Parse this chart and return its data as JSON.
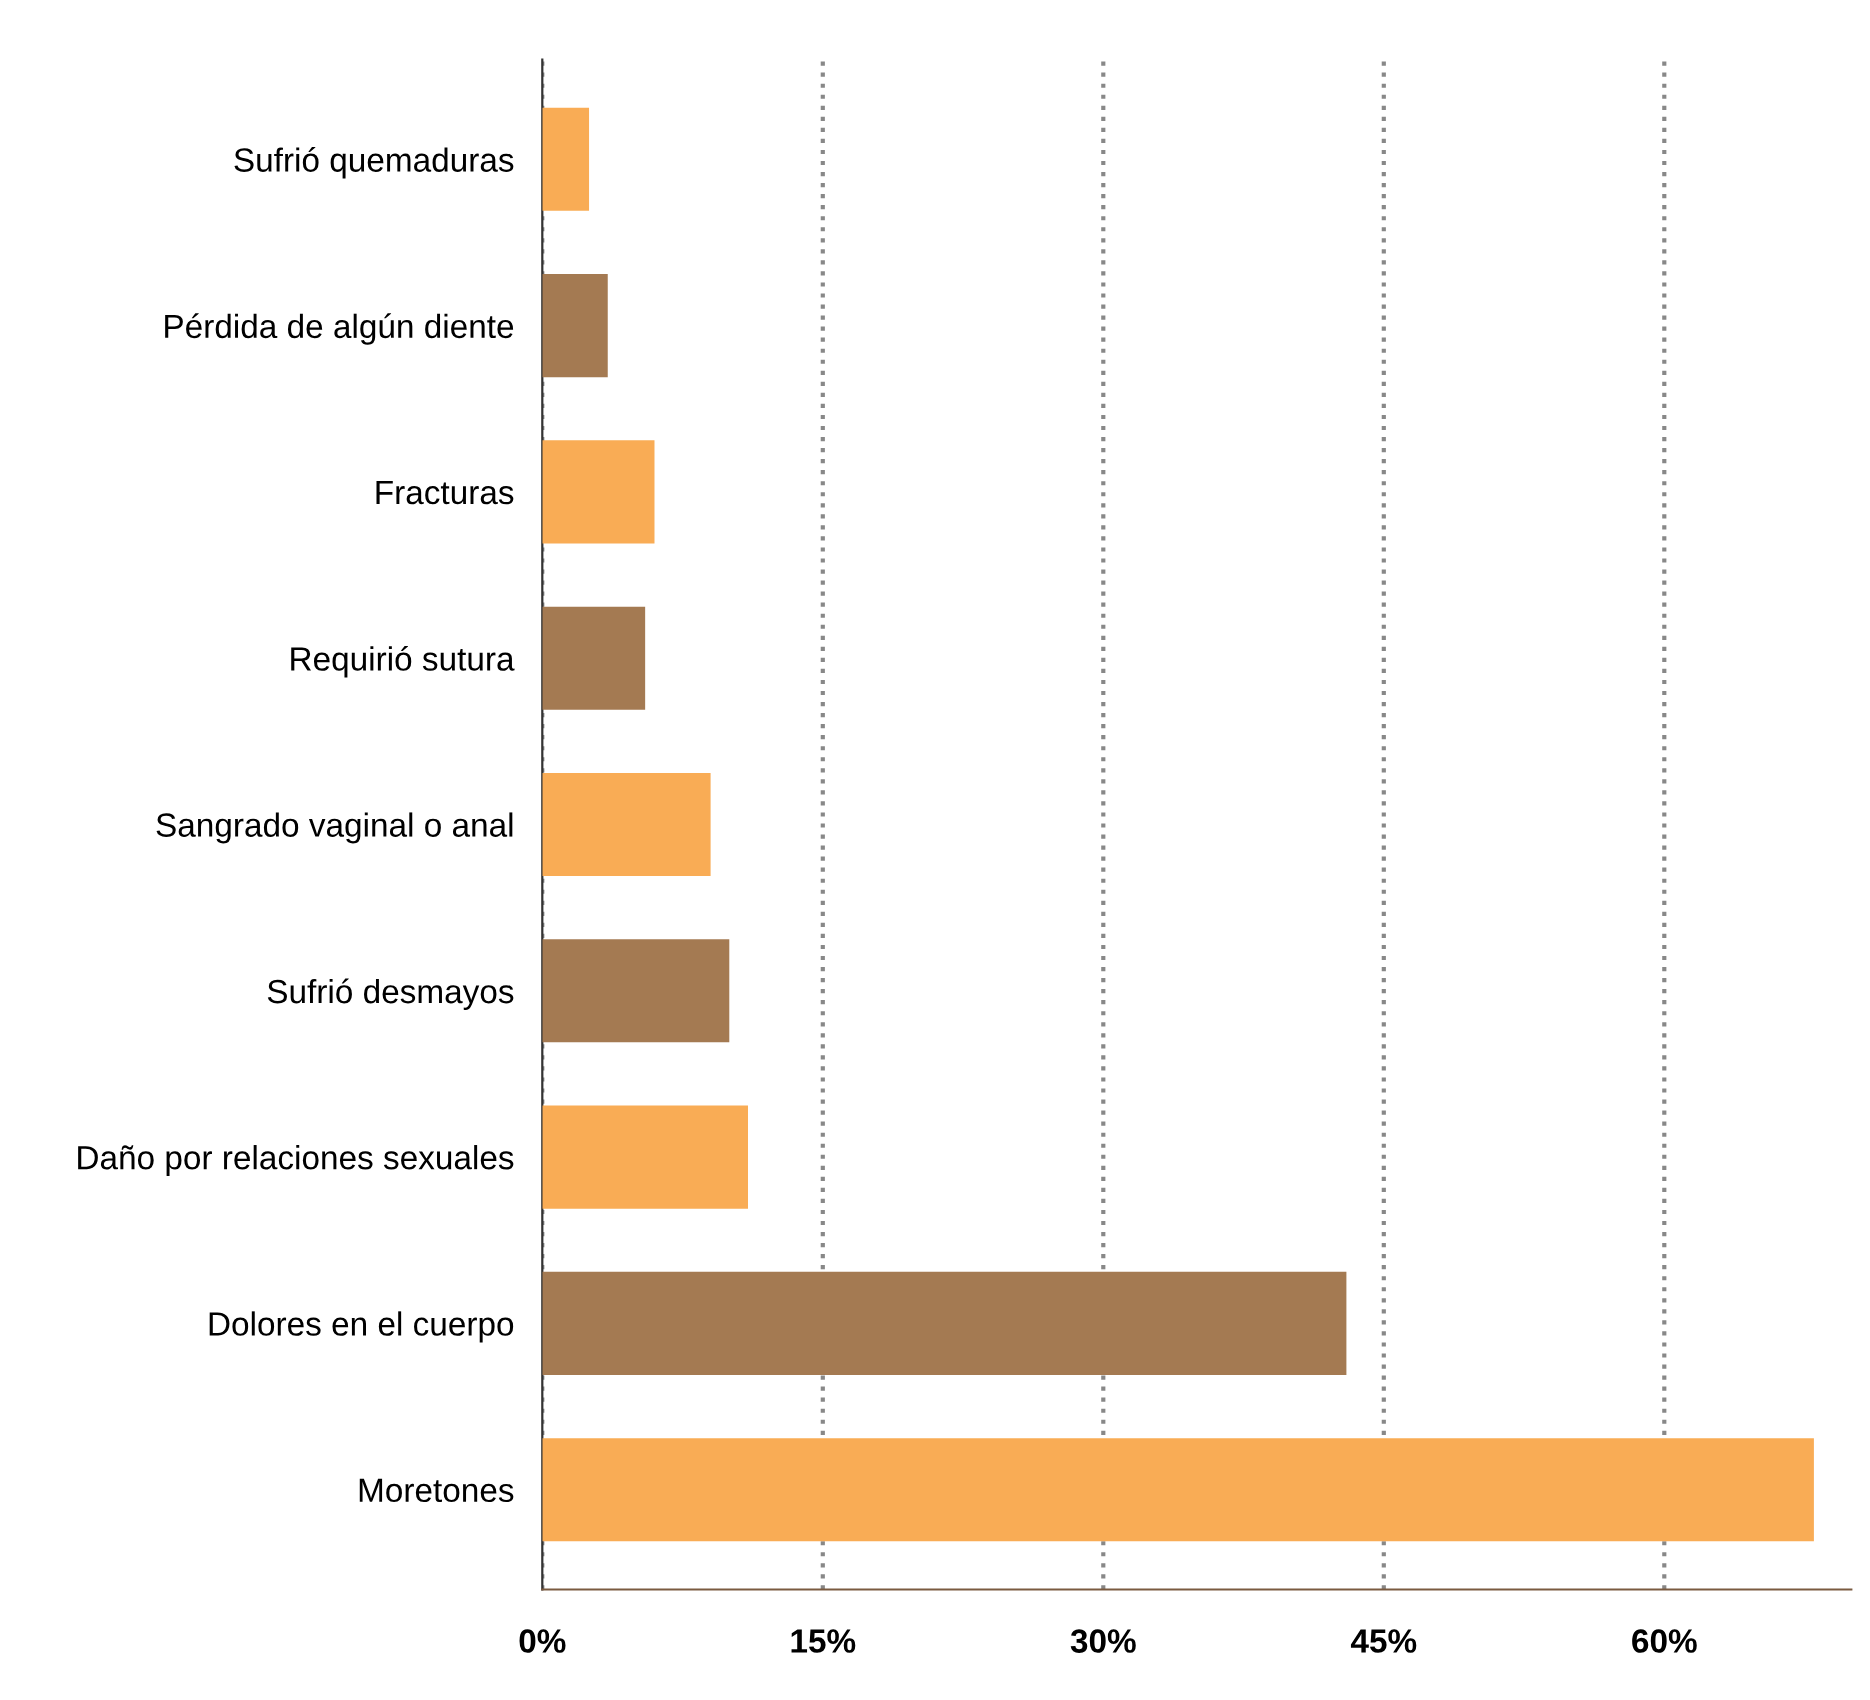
{
  "chart_data": {
    "type": "bar",
    "orientation": "horizontal",
    "categories": [
      "Sufrió quemaduras",
      "Pérdida de algún diente",
      "Fracturas",
      "Requirió sutura",
      "Sangrado vaginal o anal",
      "Sufrió desmayos",
      "Daño por relaciones sexuales",
      "Dolores en el cuerpo",
      "Moretones"
    ],
    "values": [
      2.5,
      3.5,
      6,
      5.5,
      9,
      10,
      11,
      43,
      68
    ],
    "colors": [
      "#f9ac55",
      "#a47a52",
      "#f9ac55",
      "#a47a52",
      "#f9ac55",
      "#a47a52",
      "#f9ac55",
      "#a47a52",
      "#f9ac55"
    ],
    "xlim": [
      0,
      70
    ],
    "xticks": [
      {
        "value": 0,
        "label": "0%"
      },
      {
        "value": 15,
        "label": "15%"
      },
      {
        "value": 30,
        "label": "30%"
      },
      {
        "value": 45,
        "label": "45%"
      },
      {
        "value": 60,
        "label": "60%"
      }
    ],
    "grid": "x",
    "line_style": "dotted"
  }
}
